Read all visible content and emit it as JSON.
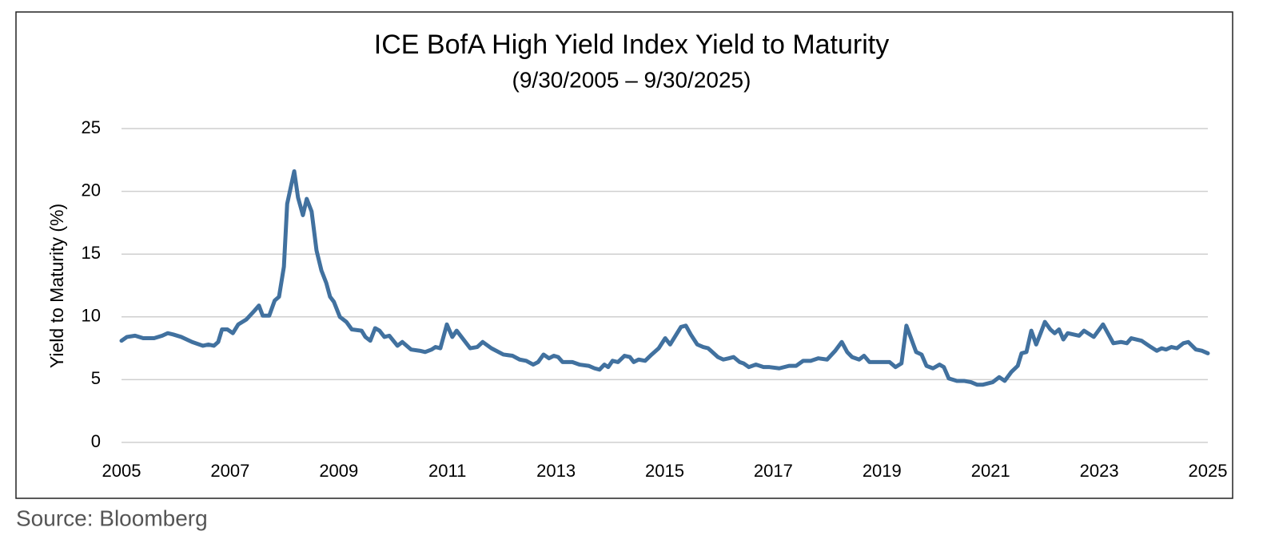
{
  "chart_data": {
    "type": "line",
    "title": "ICE BofA High Yield Index Yield to Maturity",
    "subtitle": "(9/30/2005 – 9/30/2025)",
    "y_label": "Yield to Maturity (%)",
    "source": "Source: Bloomberg",
    "xlim": [
      2005,
      2025
    ],
    "xticks": [
      2005,
      2007,
      2009,
      2011,
      2013,
      2015,
      2017,
      2019,
      2021,
      2023,
      2025
    ],
    "ylim": [
      0,
      25
    ],
    "yticks": [
      0,
      5,
      10,
      15,
      20,
      25
    ],
    "grid": true,
    "x": [
      2005.0,
      2005.1,
      2005.25,
      2005.4,
      2005.6,
      2005.75,
      2005.85,
      2005.95,
      2006.1,
      2006.3,
      2006.5,
      2006.6,
      2006.7,
      2006.78,
      2006.85,
      2006.95,
      2007.05,
      2007.15,
      2007.3,
      2007.45,
      2007.53,
      2007.6,
      2007.72,
      2007.82,
      2007.9,
      2007.99,
      2008.05,
      2008.18,
      2008.25,
      2008.34,
      2008.41,
      2008.5,
      2008.59,
      2008.68,
      2008.77,
      2008.84,
      2008.91,
      2009.02,
      2009.14,
      2009.24,
      2009.42,
      2009.49,
      2009.58,
      2009.67,
      2009.75,
      2009.84,
      2009.93,
      2010.08,
      2010.17,
      2010.33,
      2010.49,
      2010.59,
      2010.71,
      2010.78,
      2010.87,
      2010.99,
      2011.09,
      2011.17,
      2011.42,
      2011.55,
      2011.65,
      2011.81,
      2012.03,
      2012.2,
      2012.33,
      2012.45,
      2012.58,
      2012.67,
      2012.77,
      2012.87,
      2012.96,
      2013.04,
      2013.12,
      2013.3,
      2013.43,
      2013.6,
      2013.71,
      2013.8,
      2013.89,
      2013.96,
      2014.04,
      2014.14,
      2014.26,
      2014.36,
      2014.43,
      2014.52,
      2014.64,
      2014.76,
      2014.89,
      2015.01,
      2015.1,
      2015.3,
      2015.39,
      2015.48,
      2015.6,
      2015.71,
      2015.8,
      2015.98,
      2016.08,
      2016.18,
      2016.27,
      2016.38,
      2016.45,
      2016.55,
      2016.68,
      2016.82,
      2016.93,
      2017.11,
      2017.29,
      2017.42,
      2017.55,
      2017.69,
      2017.83,
      2017.99,
      2018.14,
      2018.26,
      2018.36,
      2018.45,
      2018.58,
      2018.67,
      2018.77,
      2018.95,
      2019.14,
      2019.25,
      2019.36,
      2019.45,
      2019.63,
      2019.73,
      2019.82,
      2019.94,
      2020.06,
      2020.14,
      2020.23,
      2020.38,
      2020.51,
      2020.64,
      2020.75,
      2020.86,
      2021.04,
      2021.16,
      2021.26,
      2021.38,
      2021.5,
      2021.57,
      2021.66,
      2021.75,
      2021.84,
      2021.93,
      2022.0,
      2022.1,
      2022.18,
      2022.26,
      2022.34,
      2022.42,
      2022.63,
      2022.72,
      2022.9,
      2023.07,
      2023.26,
      2023.4,
      2023.51,
      2023.59,
      2023.78,
      2023.95,
      2024.06,
      2024.15,
      2024.23,
      2024.33,
      2024.43,
      2024.55,
      2024.64,
      2024.78,
      2024.89,
      2025.0
    ],
    "series": [
      {
        "color": "#41719f",
        "values": [
          8.1,
          8.4,
          8.5,
          8.3,
          8.3,
          8.5,
          8.7,
          8.6,
          8.4,
          8.0,
          7.7,
          7.8,
          7.7,
          8.0,
          9.0,
          9.0,
          8.7,
          9.4,
          9.8,
          10.5,
          10.9,
          10.1,
          10.1,
          11.3,
          11.6,
          14.0,
          19.0,
          21.6,
          19.5,
          18.1,
          19.4,
          18.4,
          15.3,
          13.7,
          12.7,
          11.6,
          11.2,
          10.0,
          9.6,
          9.0,
          8.9,
          8.4,
          8.1,
          9.1,
          8.9,
          8.4,
          8.5,
          7.7,
          8.0,
          7.4,
          7.3,
          7.2,
          7.4,
          7.6,
          7.5,
          9.4,
          8.4,
          8.9,
          7.5,
          7.6,
          8.0,
          7.5,
          7.0,
          6.9,
          6.6,
          6.5,
          6.2,
          6.4,
          7.0,
          6.7,
          6.9,
          6.8,
          6.4,
          6.4,
          6.2,
          6.1,
          5.9,
          5.8,
          6.2,
          6.0,
          6.5,
          6.4,
          6.9,
          6.8,
          6.4,
          6.6,
          6.5,
          7.0,
          7.5,
          8.3,
          7.8,
          9.2,
          9.3,
          8.6,
          7.8,
          7.6,
          7.5,
          6.8,
          6.6,
          6.7,
          6.8,
          6.4,
          6.3,
          6.0,
          6.2,
          6.0,
          6.0,
          5.9,
          6.1,
          6.1,
          6.5,
          6.5,
          6.7,
          6.6,
          7.3,
          8.0,
          7.2,
          6.8,
          6.6,
          6.9,
          6.4,
          6.4,
          6.4,
          6.0,
          6.3,
          9.3,
          7.2,
          7.0,
          6.1,
          5.9,
          6.2,
          6.0,
          5.1,
          4.9,
          4.9,
          4.8,
          4.6,
          4.6,
          4.8,
          5.2,
          4.9,
          5.6,
          6.1,
          7.1,
          7.2,
          8.9,
          7.8,
          8.8,
          9.6,
          9.0,
          8.7,
          9.0,
          8.2,
          8.7,
          8.5,
          8.9,
          8.4,
          9.4,
          7.9,
          8.0,
          7.9,
          8.3,
          8.1,
          7.6,
          7.3,
          7.5,
          7.4,
          7.6,
          7.5,
          7.9,
          8.0,
          7.4,
          7.3,
          7.1
        ]
      }
    ]
  }
}
